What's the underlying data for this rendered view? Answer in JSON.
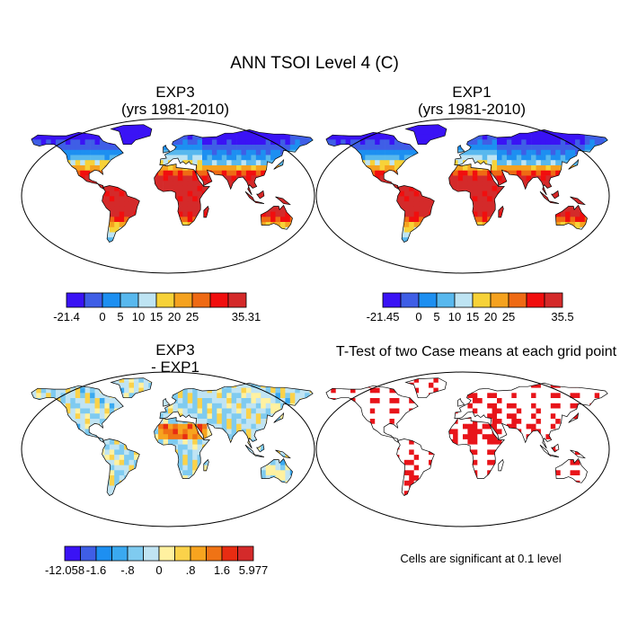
{
  "title": "ANN TSOI Level 4 (C)",
  "panels": [
    {
      "id": "p1",
      "title_line1": "EXP3",
      "title_line2": "(yrs 1981-2010)",
      "field": "temperature",
      "colorbar": {
        "colors": [
          "#3a13f5",
          "#3f5ee6",
          "#1d8ff1",
          "#58b8ee",
          "#bee4f3",
          "#f7d238",
          "#f5a21f",
          "#ef6a14",
          "#f10e0e",
          "#d42a2a"
        ],
        "tick_labels": [
          "-21.4",
          "0",
          "5",
          "10",
          "15",
          "20",
          "25",
          "35.31"
        ],
        "tick_boundaries": [
          0,
          2,
          3,
          4,
          5,
          6,
          7,
          10
        ]
      }
    },
    {
      "id": "p2",
      "title_line1": "EXP1",
      "title_line2": "(yrs 1981-2010)",
      "field": "temperature",
      "colorbar": {
        "colors": [
          "#3a13f5",
          "#3f5ee6",
          "#1d8ff1",
          "#58b8ee",
          "#bee4f3",
          "#f7d238",
          "#f5a21f",
          "#ef6a14",
          "#f10e0e",
          "#d42a2a"
        ],
        "tick_labels": [
          "-21.45",
          "0",
          "5",
          "10",
          "15",
          "20",
          "25",
          "35.5"
        ],
        "tick_boundaries": [
          0,
          2,
          3,
          4,
          5,
          6,
          7,
          10
        ]
      }
    },
    {
      "id": "p3",
      "title_line1": "EXP3",
      "title_line2": "- EXP1",
      "field": "difference",
      "colorbar": {
        "colors": [
          "#3a13f5",
          "#3f5ee6",
          "#1d8ff1",
          "#3aa9f0",
          "#7fcbf0",
          "#c0e4f3",
          "#fff1a0",
          "#fbd24a",
          "#f7a41f",
          "#f07315",
          "#e82c12",
          "#d42a2a"
        ],
        "tick_labels": [
          "-12.058",
          "-1.6",
          "-.8",
          "0",
          ".8",
          "1.6",
          "5.977"
        ],
        "tick_boundaries": [
          0,
          2,
          4,
          6,
          8,
          10,
          12
        ]
      }
    },
    {
      "id": "p4",
      "title_line1": "T-Test of two Case means at each grid point",
      "title_line2": "",
      "field": "significance",
      "note": "Cells are significant at 0.1 level"
    }
  ]
}
